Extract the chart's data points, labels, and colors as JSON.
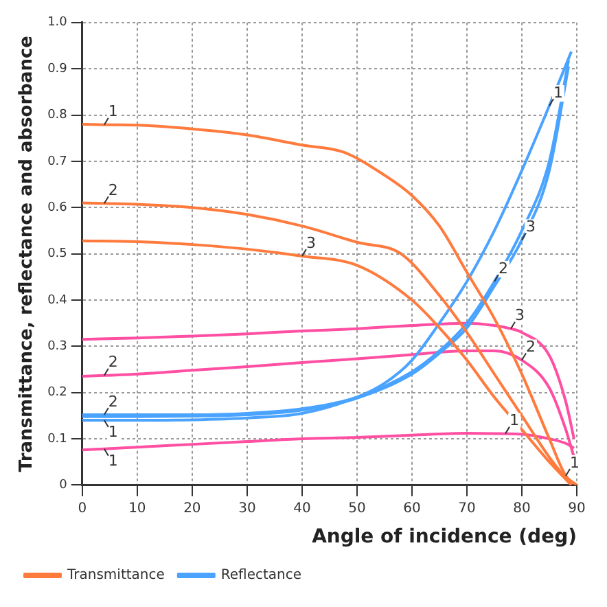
{
  "chart_data": {
    "type": "line",
    "xlabel": "Angle of incidence (deg)",
    "ylabel": "Transmittance, reflectance and absorbance",
    "xlim": [
      0,
      90
    ],
    "ylim": [
      0,
      1
    ],
    "xticks": [
      0,
      10,
      20,
      30,
      40,
      50,
      60,
      70,
      80,
      90
    ],
    "yticks": [
      0,
      0.1,
      0.2,
      0.3,
      0.4,
      0.5,
      0.6,
      0.7,
      0.8,
      0.9,
      {
        "value": 1,
        "label": "1.0"
      }
    ],
    "grid": true,
    "legend": "bottom left",
    "marker": "none",
    "line_style": "solid",
    "series": [
      {
        "name": "Transmittance",
        "color": "#ff7a3d",
        "x": [
          0,
          4,
          10,
          20,
          30,
          40,
          47.5,
          55,
          60,
          65,
          70,
          75,
          80,
          85,
          88,
          90
        ],
        "values": [
          0.78,
          0.779,
          0.778,
          0.77,
          0.757,
          0.735,
          0.72,
          0.67,
          0.626,
          0.56,
          0.46,
          0.36,
          0.24,
          0.1,
          0.02,
          0
        ]
      },
      {
        "color": "#ff7a3d",
        "x": [
          0,
          4,
          10,
          20,
          30,
          40,
          50,
          58,
          65,
          70,
          75,
          80,
          85,
          89
        ],
        "values": [
          0.61,
          0.609,
          0.607,
          0.6,
          0.585,
          0.56,
          0.525,
          0.5,
          0.41,
          0.33,
          0.24,
          0.15,
          0.06,
          0
        ]
      },
      {
        "color": "#ff7a3d",
        "x": [
          0,
          10,
          20,
          30,
          40,
          50,
          60,
          65,
          70,
          75,
          80,
          85,
          89
        ],
        "values": [
          0.528,
          0.526,
          0.52,
          0.51,
          0.495,
          0.475,
          0.4,
          0.34,
          0.27,
          0.19,
          0.12,
          0.05,
          0
        ]
      },
      {
        "name": "Reflectance",
        "color": "#4aa3ff",
        "x": [
          0,
          4,
          10,
          20,
          30,
          40,
          50,
          55,
          60,
          65,
          70,
          75,
          80,
          85,
          89
        ],
        "values": [
          0.14,
          0.14,
          0.14,
          0.141,
          0.145,
          0.155,
          0.19,
          0.22,
          0.27,
          0.35,
          0.44,
          0.55,
          0.68,
          0.82,
          0.937
        ]
      },
      {
        "color": "#4aa3ff",
        "x": [
          0,
          4,
          10,
          20,
          30,
          40,
          50,
          60,
          65,
          70,
          75,
          80,
          85,
          88.5
        ],
        "values": [
          0.152,
          0.152,
          0.152,
          0.152,
          0.155,
          0.165,
          0.19,
          0.245,
          0.29,
          0.35,
          0.44,
          0.55,
          0.7,
          0.918
        ]
      },
      {
        "color": "#4aa3ff",
        "x": [
          0,
          10,
          20,
          30,
          40,
          50,
          60,
          65,
          70,
          75,
          80,
          85,
          88.5
        ],
        "values": [
          0.148,
          0.148,
          0.149,
          0.152,
          0.162,
          0.188,
          0.24,
          0.285,
          0.34,
          0.43,
          0.53,
          0.68,
          0.905
        ]
      },
      {
        "color": "#ff4fa3",
        "x": [
          0,
          4,
          10,
          20,
          30,
          40,
          50,
          60,
          70,
          77,
          80,
          85,
          88,
          89.5
        ],
        "values": [
          0.076,
          0.078,
          0.082,
          0.088,
          0.094,
          0.1,
          0.103,
          0.108,
          0.112,
          0.111,
          0.11,
          0.1,
          0.09,
          0.08
        ]
      },
      {
        "color": "#ff4fa3",
        "x": [
          0,
          4,
          10,
          20,
          30,
          40,
          50,
          60,
          70,
          75,
          80,
          85,
          88,
          89.5
        ],
        "values": [
          0.235,
          0.237,
          0.24,
          0.248,
          0.256,
          0.265,
          0.273,
          0.282,
          0.29,
          0.29,
          0.27,
          0.21,
          0.12,
          0.06
        ]
      },
      {
        "color": "#ff4fa3",
        "x": [
          0,
          10,
          20,
          30,
          40,
          50,
          60,
          70,
          75,
          78,
          80,
          85,
          88,
          89.5
        ],
        "values": [
          0.315,
          0.318,
          0.322,
          0.327,
          0.333,
          0.338,
          0.345,
          0.35,
          0.345,
          0.338,
          0.33,
          0.28,
          0.18,
          0.1
        ]
      }
    ],
    "annotations": [
      {
        "text": "1",
        "x": 4,
        "y": 0.779
      },
      {
        "text": "2",
        "x": 4,
        "y": 0.609
      },
      {
        "text": "3",
        "x": 40,
        "y": 0.495
      },
      {
        "text": "1",
        "x": 85,
        "y": 0.82
      },
      {
        "text": "2",
        "x": 75,
        "y": 0.44
      },
      {
        "text": "3",
        "x": 80,
        "y": 0.53
      },
      {
        "text": "2",
        "x": 4,
        "y": 0.152
      },
      {
        "text": "1",
        "x": 4,
        "y": 0.14
      },
      {
        "text": "1",
        "x": 4,
        "y": 0.078
      },
      {
        "text": "2",
        "x": 4,
        "y": 0.237
      },
      {
        "text": "1",
        "x": 77,
        "y": 0.111
      },
      {
        "text": "2",
        "x": 80,
        "y": 0.27
      },
      {
        "text": "3",
        "x": 78,
        "y": 0.338
      },
      {
        "text": "1",
        "x": 88,
        "y": 0.02
      }
    ]
  }
}
